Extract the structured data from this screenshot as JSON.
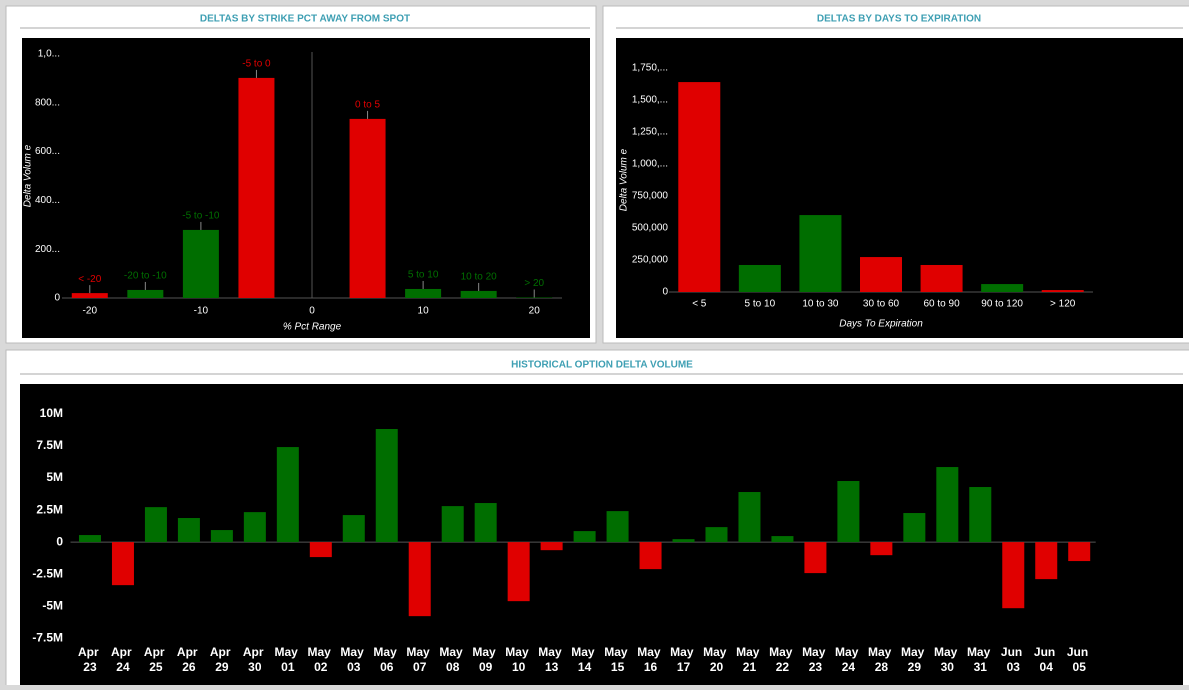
{
  "chart_data": [
    {
      "type": "bar",
      "title": "DELTAS BY STRIKE PCT AWAY FROM SPOT",
      "x_label": "% Pct Range",
      "y_label": "Delta Volum e",
      "categories": [
        "< -20",
        "-20 to -10",
        "-5 to -10",
        "-5 to 0",
        "0 to 5",
        "5 to 10",
        "10 to 20",
        "> 20"
      ],
      "x": [
        -20,
        -15,
        -10,
        -5,
        5,
        10,
        15,
        20
      ],
      "values": [
        20,
        33,
        279,
        902,
        734,
        37,
        29,
        2
      ],
      "colors": [
        "#e00000",
        "#006e00",
        "#006e00",
        "#e00000",
        "#e00000",
        "#006e00",
        "#006e00",
        "#006e00"
      ],
      "xlim": [
        -22.5,
        22.5
      ],
      "xticks": [
        -20,
        -10,
        0,
        10,
        20
      ],
      "ylim": [
        0,
        1000
      ],
      "yticks": [
        0,
        {
          "value": 200,
          "label": "200..."
        },
        {
          "value": 400,
          "label": "400..."
        },
        {
          "value": 600,
          "label": "600..."
        },
        {
          "value": 800,
          "label": "800..."
        },
        {
          "value": 1000,
          "label": "1,0..."
        }
      ]
    },
    {
      "type": "bar",
      "title": "DELTAS BY DAYS TO EXPIRATION",
      "x_label": "Days To Expiration",
      "y_label": "Delta Volum e",
      "categories": [
        "< 5",
        "5 to 10",
        "10 to 30",
        "30 to 60",
        "60 to 90",
        "90 to 120",
        "> 120"
      ],
      "values": [
        1640000,
        211000,
        601000,
        273000,
        211000,
        62000,
        15000
      ],
      "colors": [
        "#e00000",
        "#006e00",
        "#006e00",
        "#e00000",
        "#e00000",
        "#006e00",
        "#e00000"
      ],
      "ylim": [
        0,
        1750000
      ],
      "yticks": [
        0,
        {
          "value": 250000,
          "label": "250,000"
        },
        {
          "value": 500000,
          "label": "500,000"
        },
        {
          "value": 750000,
          "label": "750,000"
        },
        {
          "value": 1000000,
          "label": "1,000,..."
        },
        {
          "value": 1250000,
          "label": "1,250,..."
        },
        {
          "value": 1500000,
          "label": "1,500,..."
        },
        {
          "value": 1750000,
          "label": "1,750,..."
        }
      ]
    },
    {
      "type": "bar",
      "title": "HISTORICAL OPTION DELTA VOLUME",
      "categories": [
        "Apr 23",
        "Apr 24",
        "Apr 25",
        "Apr 26",
        "Apr 29",
        "Apr 30",
        "May 01",
        "May 02",
        "May 03",
        "May 06",
        "May 07",
        "May 08",
        "May 09",
        "May 10",
        "May 13",
        "May 14",
        "May 15",
        "May 16",
        "May 17",
        "May 20",
        "May 21",
        "May 22",
        "May 23",
        "May 24",
        "May 28",
        "May 29",
        "May 30",
        "May 31",
        "Jun 03",
        "Jun 04",
        "Jun 05"
      ],
      "values": [
        550000,
        -3360000,
        2730000,
        1880000,
        940000,
        2340000,
        7420000,
        -1170000,
        2110000,
        8830000,
        -5780000,
        2810000,
        3050000,
        -4610000,
        -630000,
        860000,
        2420000,
        -2110000,
        230000,
        1170000,
        3910000,
        470000,
        -2420000,
        4770000,
        -1020000,
        2270000,
        5860000,
        4300000,
        -5160000,
        -2890000,
        -1480000
      ],
      "positive_color": "#006e00",
      "negative_color": "#e00000",
      "ylim": [
        -11000000,
        12000000
      ],
      "yticks": [
        {
          "value": 10000000,
          "label": "10M"
        },
        {
          "value": 7500000,
          "label": "7.5M"
        },
        {
          "value": 5000000,
          "label": "5M"
        },
        {
          "value": 2500000,
          "label": "2.5M"
        },
        0,
        {
          "value": -2500000,
          "label": "-2.5M"
        },
        {
          "value": -5000000,
          "label": "-5M"
        },
        {
          "value": -7500000,
          "label": "-7.5M"
        }
      ]
    }
  ]
}
